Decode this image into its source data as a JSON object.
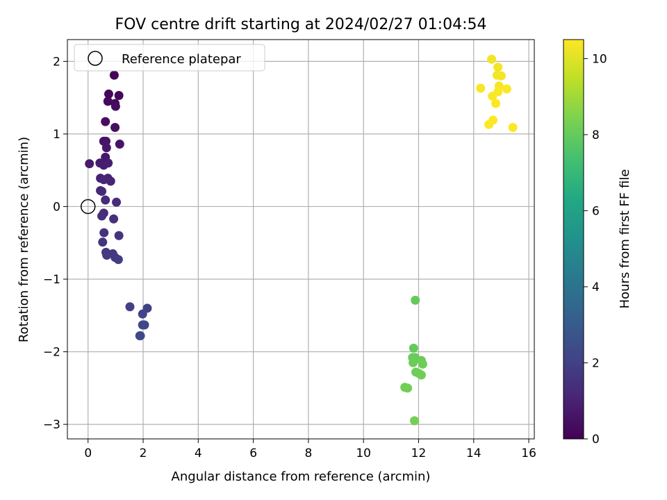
{
  "chart_data": {
    "type": "scatter",
    "title": "FOV centre drift starting at 2024/02/27 01:04:54",
    "xlabel": "Angular distance from reference (arcmin)",
    "ylabel": "Rotation from reference (arcmin)",
    "xlim": [
      -0.75,
      16.2
    ],
    "ylim": [
      -3.2,
      2.3
    ],
    "xticks": [
      0,
      2,
      4,
      6,
      8,
      10,
      12,
      14,
      16
    ],
    "yticks": [
      -3,
      -2,
      -1,
      0,
      1,
      2
    ],
    "grid": true,
    "legend": {
      "placement": "top-left",
      "entries": [
        "Reference platepar"
      ]
    },
    "reference_point": {
      "x": 0,
      "y": 0,
      "label": "Reference platepar"
    },
    "colorbar": {
      "label": "Hours from first FF file",
      "min": 0,
      "max": 10.5,
      "ticks": [
        0,
        2,
        4,
        6,
        8,
        10
      ],
      "colormap": "viridis"
    },
    "points": [
      {
        "x": 0.95,
        "y": 1.81,
        "c": 0.1
      },
      {
        "x": 0.75,
        "y": 1.55,
        "c": 0.15
      },
      {
        "x": 1.12,
        "y": 1.53,
        "c": 0.2
      },
      {
        "x": 0.72,
        "y": 1.45,
        "c": 0.25
      },
      {
        "x": 0.98,
        "y": 1.42,
        "c": 0.3
      },
      {
        "x": 1.0,
        "y": 1.38,
        "c": 0.35
      },
      {
        "x": 0.63,
        "y": 1.17,
        "c": 0.4
      },
      {
        "x": 0.98,
        "y": 1.09,
        "c": 0.45
      },
      {
        "x": 0.57,
        "y": 0.9,
        "c": 0.5
      },
      {
        "x": 0.65,
        "y": 0.9,
        "c": 0.55
      },
      {
        "x": 1.15,
        "y": 0.86,
        "c": 0.6
      },
      {
        "x": 0.67,
        "y": 0.81,
        "c": 0.65
      },
      {
        "x": 0.63,
        "y": 0.68,
        "c": 0.7
      },
      {
        "x": 0.05,
        "y": 0.59,
        "c": 0.75
      },
      {
        "x": 0.43,
        "y": 0.6,
        "c": 0.8
      },
      {
        "x": 0.57,
        "y": 0.57,
        "c": 0.85
      },
      {
        "x": 0.73,
        "y": 0.6,
        "c": 0.9
      },
      {
        "x": 0.45,
        "y": 0.39,
        "c": 0.95
      },
      {
        "x": 0.72,
        "y": 0.39,
        "c": 1.0
      },
      {
        "x": 0.82,
        "y": 0.35,
        "c": 1.05
      },
      {
        "x": 0.57,
        "y": 0.37,
        "c": 1.1
      },
      {
        "x": 0.45,
        "y": 0.22,
        "c": 1.15
      },
      {
        "x": 0.5,
        "y": 0.21,
        "c": 1.2
      },
      {
        "x": 0.63,
        "y": 0.09,
        "c": 1.25
      },
      {
        "x": 1.03,
        "y": 0.06,
        "c": 1.3
      },
      {
        "x": 0.57,
        "y": -0.09,
        "c": 1.35
      },
      {
        "x": 0.5,
        "y": -0.13,
        "c": 1.4
      },
      {
        "x": 0.93,
        "y": -0.17,
        "c": 1.45
      },
      {
        "x": 0.58,
        "y": -0.36,
        "c": 1.5
      },
      {
        "x": 1.12,
        "y": -0.4,
        "c": 1.55
      },
      {
        "x": 0.53,
        "y": -0.49,
        "c": 1.6
      },
      {
        "x": 0.65,
        "y": -0.63,
        "c": 1.65
      },
      {
        "x": 0.68,
        "y": -0.67,
        "c": 1.7
      },
      {
        "x": 0.9,
        "y": -0.65,
        "c": 1.75
      },
      {
        "x": 0.98,
        "y": -0.7,
        "c": 1.8
      },
      {
        "x": 1.1,
        "y": -0.73,
        "c": 1.85
      },
      {
        "x": 1.52,
        "y": -1.38,
        "c": 2.0
      },
      {
        "x": 2.15,
        "y": -1.4,
        "c": 2.05
      },
      {
        "x": 1.98,
        "y": -1.48,
        "c": 2.1
      },
      {
        "x": 2.05,
        "y": -1.63,
        "c": 2.15
      },
      {
        "x": 1.98,
        "y": -1.63,
        "c": 2.2
      },
      {
        "x": 1.9,
        "y": -1.78,
        "c": 2.25
      },
      {
        "x": 1.88,
        "y": -1.78,
        "c": 2.3
      },
      {
        "x": 11.88,
        "y": -1.29,
        "c": 8.0
      },
      {
        "x": 11.82,
        "y": -1.95,
        "c": 8.0
      },
      {
        "x": 11.78,
        "y": -2.08,
        "c": 8.05
      },
      {
        "x": 11.88,
        "y": -2.08,
        "c": 8.05
      },
      {
        "x": 12.1,
        "y": -2.12,
        "c": 8.1
      },
      {
        "x": 11.8,
        "y": -2.15,
        "c": 8.1
      },
      {
        "x": 12.15,
        "y": -2.17,
        "c": 8.15
      },
      {
        "x": 11.9,
        "y": -2.28,
        "c": 8.15
      },
      {
        "x": 12.02,
        "y": -2.3,
        "c": 8.2
      },
      {
        "x": 12.1,
        "y": -2.32,
        "c": 8.2
      },
      {
        "x": 11.5,
        "y": -2.49,
        "c": 8.25
      },
      {
        "x": 11.6,
        "y": -2.5,
        "c": 8.25
      },
      {
        "x": 11.85,
        "y": -2.95,
        "c": 8.3
      },
      {
        "x": 14.65,
        "y": 2.03,
        "c": 10.3
      },
      {
        "x": 14.88,
        "y": 1.92,
        "c": 10.3
      },
      {
        "x": 14.85,
        "y": 1.81,
        "c": 10.35
      },
      {
        "x": 15.0,
        "y": 1.8,
        "c": 10.35
      },
      {
        "x": 14.92,
        "y": 1.66,
        "c": 10.4
      },
      {
        "x": 14.25,
        "y": 1.63,
        "c": 10.4
      },
      {
        "x": 15.2,
        "y": 1.62,
        "c": 10.45
      },
      {
        "x": 14.88,
        "y": 1.58,
        "c": 10.45
      },
      {
        "x": 14.68,
        "y": 1.52,
        "c": 10.45
      },
      {
        "x": 14.8,
        "y": 1.42,
        "c": 10.5
      },
      {
        "x": 14.7,
        "y": 1.19,
        "c": 10.5
      },
      {
        "x": 14.55,
        "y": 1.13,
        "c": 10.5
      },
      {
        "x": 15.42,
        "y": 1.09,
        "c": 10.5
      }
    ]
  }
}
